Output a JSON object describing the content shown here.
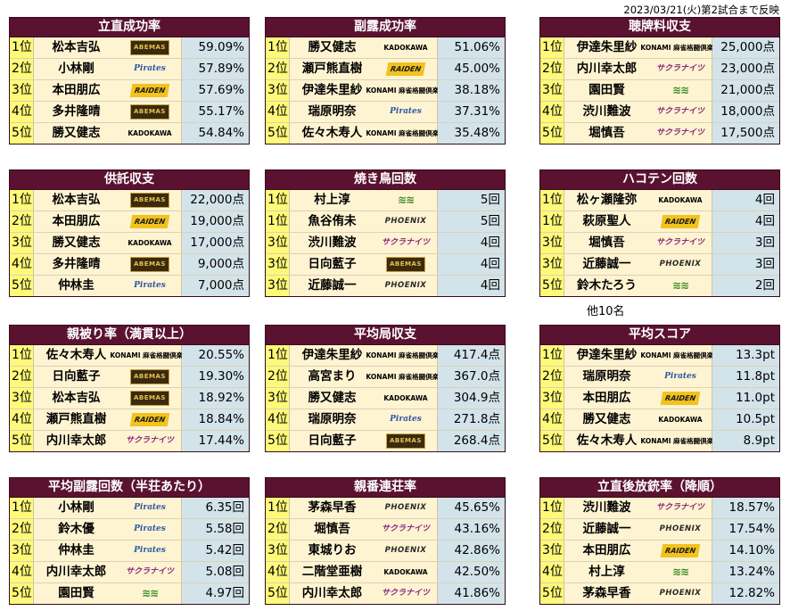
{
  "note": "2023/03/21(火)第2試合まで反映",
  "teams": {
    "abemas": {
      "label": "ABEMAS",
      "icon": "team-abemas-logo"
    },
    "raiden": {
      "label": "RAIDEN",
      "icon": "team-raiden-logo"
    },
    "pirates": {
      "label": "Pirates",
      "icon": "team-pirates-logo"
    },
    "phoenix": {
      "label": "PHOENIX",
      "icon": "team-phoenix-logo"
    },
    "sakura": {
      "label": "サクラナイツ",
      "icon": "team-sakura-logo"
    },
    "konami": {
      "label": "KONAMI 麻雀格闘倶楽部",
      "icon": "team-konami-logo"
    },
    "eifuku": {
      "label": "≋≋",
      "icon": "team-eifuku-logo"
    },
    "kadokawa": {
      "label": "KADOKAWA",
      "icon": "team-kadokawa-logo"
    }
  },
  "panels": [
    {
      "id": "p1",
      "title": "立直成功率",
      "rows": [
        {
          "rank": "1位",
          "name": "松本吉弘",
          "team": "abemas",
          "value": "59.09%"
        },
        {
          "rank": "2位",
          "name": "小林剛",
          "team": "pirates",
          "value": "57.89%"
        },
        {
          "rank": "3位",
          "name": "本田朋広",
          "team": "raiden",
          "value": "57.69%"
        },
        {
          "rank": "4位",
          "name": "多井隆晴",
          "team": "abemas",
          "value": "55.17%"
        },
        {
          "rank": "5位",
          "name": "勝又健志",
          "team": "kadokawa",
          "value": "54.84%"
        }
      ]
    },
    {
      "id": "p2",
      "title": "副露成功率",
      "rows": [
        {
          "rank": "1位",
          "name": "勝又健志",
          "team": "kadokawa",
          "value": "51.06%"
        },
        {
          "rank": "2位",
          "name": "瀬戸熊直樹",
          "team": "raiden",
          "value": "45.00%"
        },
        {
          "rank": "3位",
          "name": "伊達朱里紗",
          "team": "konami",
          "value": "38.18%"
        },
        {
          "rank": "4位",
          "name": "瑞原明奈",
          "team": "pirates",
          "value": "37.31%"
        },
        {
          "rank": "5位",
          "name": "佐々木寿人",
          "team": "konami",
          "value": "35.48%"
        }
      ]
    },
    {
      "id": "p3",
      "title": "聴牌料収支",
      "rows": [
        {
          "rank": "1位",
          "name": "伊達朱里紗",
          "team": "konami",
          "value": "25,000点"
        },
        {
          "rank": "2位",
          "name": "内川幸太郎",
          "team": "sakura",
          "value": "23,000点"
        },
        {
          "rank": "3位",
          "name": "園田賢",
          "team": "eifuku",
          "value": "21,000点"
        },
        {
          "rank": "4位",
          "name": "渋川難波",
          "team": "sakura",
          "value": "18,000点"
        },
        {
          "rank": "5位",
          "name": "堀慎吾",
          "team": "sakura",
          "value": "17,500点"
        }
      ]
    },
    {
      "id": "p4",
      "title": "供託収支",
      "rows": [
        {
          "rank": "1位",
          "name": "松本吉弘",
          "team": "abemas",
          "value": "22,000点"
        },
        {
          "rank": "2位",
          "name": "本田朋広",
          "team": "raiden",
          "value": "19,000点"
        },
        {
          "rank": "3位",
          "name": "勝又健志",
          "team": "kadokawa",
          "value": "17,000点"
        },
        {
          "rank": "4位",
          "name": "多井隆晴",
          "team": "abemas",
          "value": "9,000点"
        },
        {
          "rank": "5位",
          "name": "仲林圭",
          "team": "pirates",
          "value": "7,000点"
        }
      ]
    },
    {
      "id": "p5",
      "title": "焼き鳥回数",
      "rows": [
        {
          "rank": "1位",
          "name": "村上淳",
          "team": "eifuku",
          "value": "5回"
        },
        {
          "rank": "1位",
          "name": "魚谷侑未",
          "team": "phoenix",
          "value": "5回"
        },
        {
          "rank": "3位",
          "name": "渋川難波",
          "team": "sakura",
          "value": "4回"
        },
        {
          "rank": "3位",
          "name": "日向藍子",
          "team": "abemas",
          "value": "4回"
        },
        {
          "rank": "3位",
          "name": "近藤誠一",
          "team": "phoenix",
          "value": "4回"
        }
      ]
    },
    {
      "id": "p6",
      "title": "ハコテン回数",
      "rows": [
        {
          "rank": "1位",
          "name": "松ヶ瀬隆弥",
          "team": "kadokawa",
          "value": "4回"
        },
        {
          "rank": "1位",
          "name": "萩原聖人",
          "team": "raiden",
          "value": "4回"
        },
        {
          "rank": "3位",
          "name": "堀慎吾",
          "team": "sakura",
          "value": "3回"
        },
        {
          "rank": "3位",
          "name": "近藤誠一",
          "team": "phoenix",
          "value": "3回"
        },
        {
          "rank": "5位",
          "name": "鈴木たろう",
          "team": "eifuku",
          "value": "2回"
        }
      ]
    },
    {
      "id": "p7",
      "title": "親被り率（満貫以上）",
      "rows": [
        {
          "rank": "1位",
          "name": "佐々木寿人",
          "team": "konami",
          "value": "20.55%"
        },
        {
          "rank": "2位",
          "name": "日向藍子",
          "team": "abemas",
          "value": "19.30%"
        },
        {
          "rank": "3位",
          "name": "松本吉弘",
          "team": "abemas",
          "value": "18.92%"
        },
        {
          "rank": "4位",
          "name": "瀬戸熊直樹",
          "team": "raiden",
          "value": "18.84%"
        },
        {
          "rank": "5位",
          "name": "内川幸太郎",
          "team": "sakura",
          "value": "17.44%"
        }
      ]
    },
    {
      "id": "p8",
      "title": "平均局収支",
      "rows": [
        {
          "rank": "1位",
          "name": "伊達朱里紗",
          "team": "konami",
          "value": "417.4点"
        },
        {
          "rank": "2位",
          "name": "高宮まり",
          "team": "konami",
          "value": "367.0点"
        },
        {
          "rank": "3位",
          "name": "勝又健志",
          "team": "kadokawa",
          "value": "304.9点"
        },
        {
          "rank": "4位",
          "name": "瑞原明奈",
          "team": "pirates",
          "value": "271.8点"
        },
        {
          "rank": "5位",
          "name": "日向藍子",
          "team": "abemas",
          "value": "268.4点"
        }
      ]
    },
    {
      "id": "p9",
      "title": "平均スコア",
      "rows": [
        {
          "rank": "1位",
          "name": "伊達朱里紗",
          "team": "konami",
          "value": "13.3pt"
        },
        {
          "rank": "2位",
          "name": "瑞原明奈",
          "team": "pirates",
          "value": "11.8pt"
        },
        {
          "rank": "3位",
          "name": "本田朋広",
          "team": "raiden",
          "value": "11.0pt"
        },
        {
          "rank": "4位",
          "name": "勝又健志",
          "team": "kadokawa",
          "value": "10.5pt"
        },
        {
          "rank": "5位",
          "name": "佐々木寿人",
          "team": "konami",
          "value": "8.9pt"
        }
      ]
    },
    {
      "id": "p10",
      "title": "平均副露回数（半荘あたり）",
      "rows": [
        {
          "rank": "1位",
          "name": "小林剛",
          "team": "pirates",
          "value": "6.35回"
        },
        {
          "rank": "2位",
          "name": "鈴木優",
          "team": "pirates",
          "value": "5.58回"
        },
        {
          "rank": "3位",
          "name": "仲林圭",
          "team": "pirates",
          "value": "5.42回"
        },
        {
          "rank": "4位",
          "name": "内川幸太郎",
          "team": "sakura",
          "value": "5.08回"
        },
        {
          "rank": "5位",
          "name": "園田賢",
          "team": "eifuku",
          "value": "4.97回"
        }
      ]
    },
    {
      "id": "p11",
      "title": "親番連荘率",
      "rows": [
        {
          "rank": "1位",
          "name": "茅森早香",
          "team": "phoenix",
          "value": "45.65%"
        },
        {
          "rank": "2位",
          "name": "堀慎吾",
          "team": "sakura",
          "value": "43.16%"
        },
        {
          "rank": "3位",
          "name": "東城りお",
          "team": "phoenix",
          "value": "42.86%"
        },
        {
          "rank": "4位",
          "name": "二階堂亜樹",
          "team": "kadokawa",
          "value": "42.50%"
        },
        {
          "rank": "5位",
          "name": "内川幸太郎",
          "team": "sakura",
          "value": "41.86%"
        }
      ]
    },
    {
      "id": "p12",
      "title": "立直後放銃率（降順）",
      "rows": [
        {
          "rank": "1位",
          "name": "渋川難波",
          "team": "sakura",
          "value": "18.57%"
        },
        {
          "rank": "2位",
          "name": "近藤誠一",
          "team": "phoenix",
          "value": "17.54%"
        },
        {
          "rank": "3位",
          "name": "本田朋広",
          "team": "raiden",
          "value": "14.10%"
        },
        {
          "rank": "4位",
          "name": "村上淳",
          "team": "eifuku",
          "value": "13.24%"
        },
        {
          "rank": "5位",
          "name": "茅森早香",
          "team": "phoenix",
          "value": "12.82%"
        }
      ]
    }
  ],
  "extra_note": "他10名"
}
